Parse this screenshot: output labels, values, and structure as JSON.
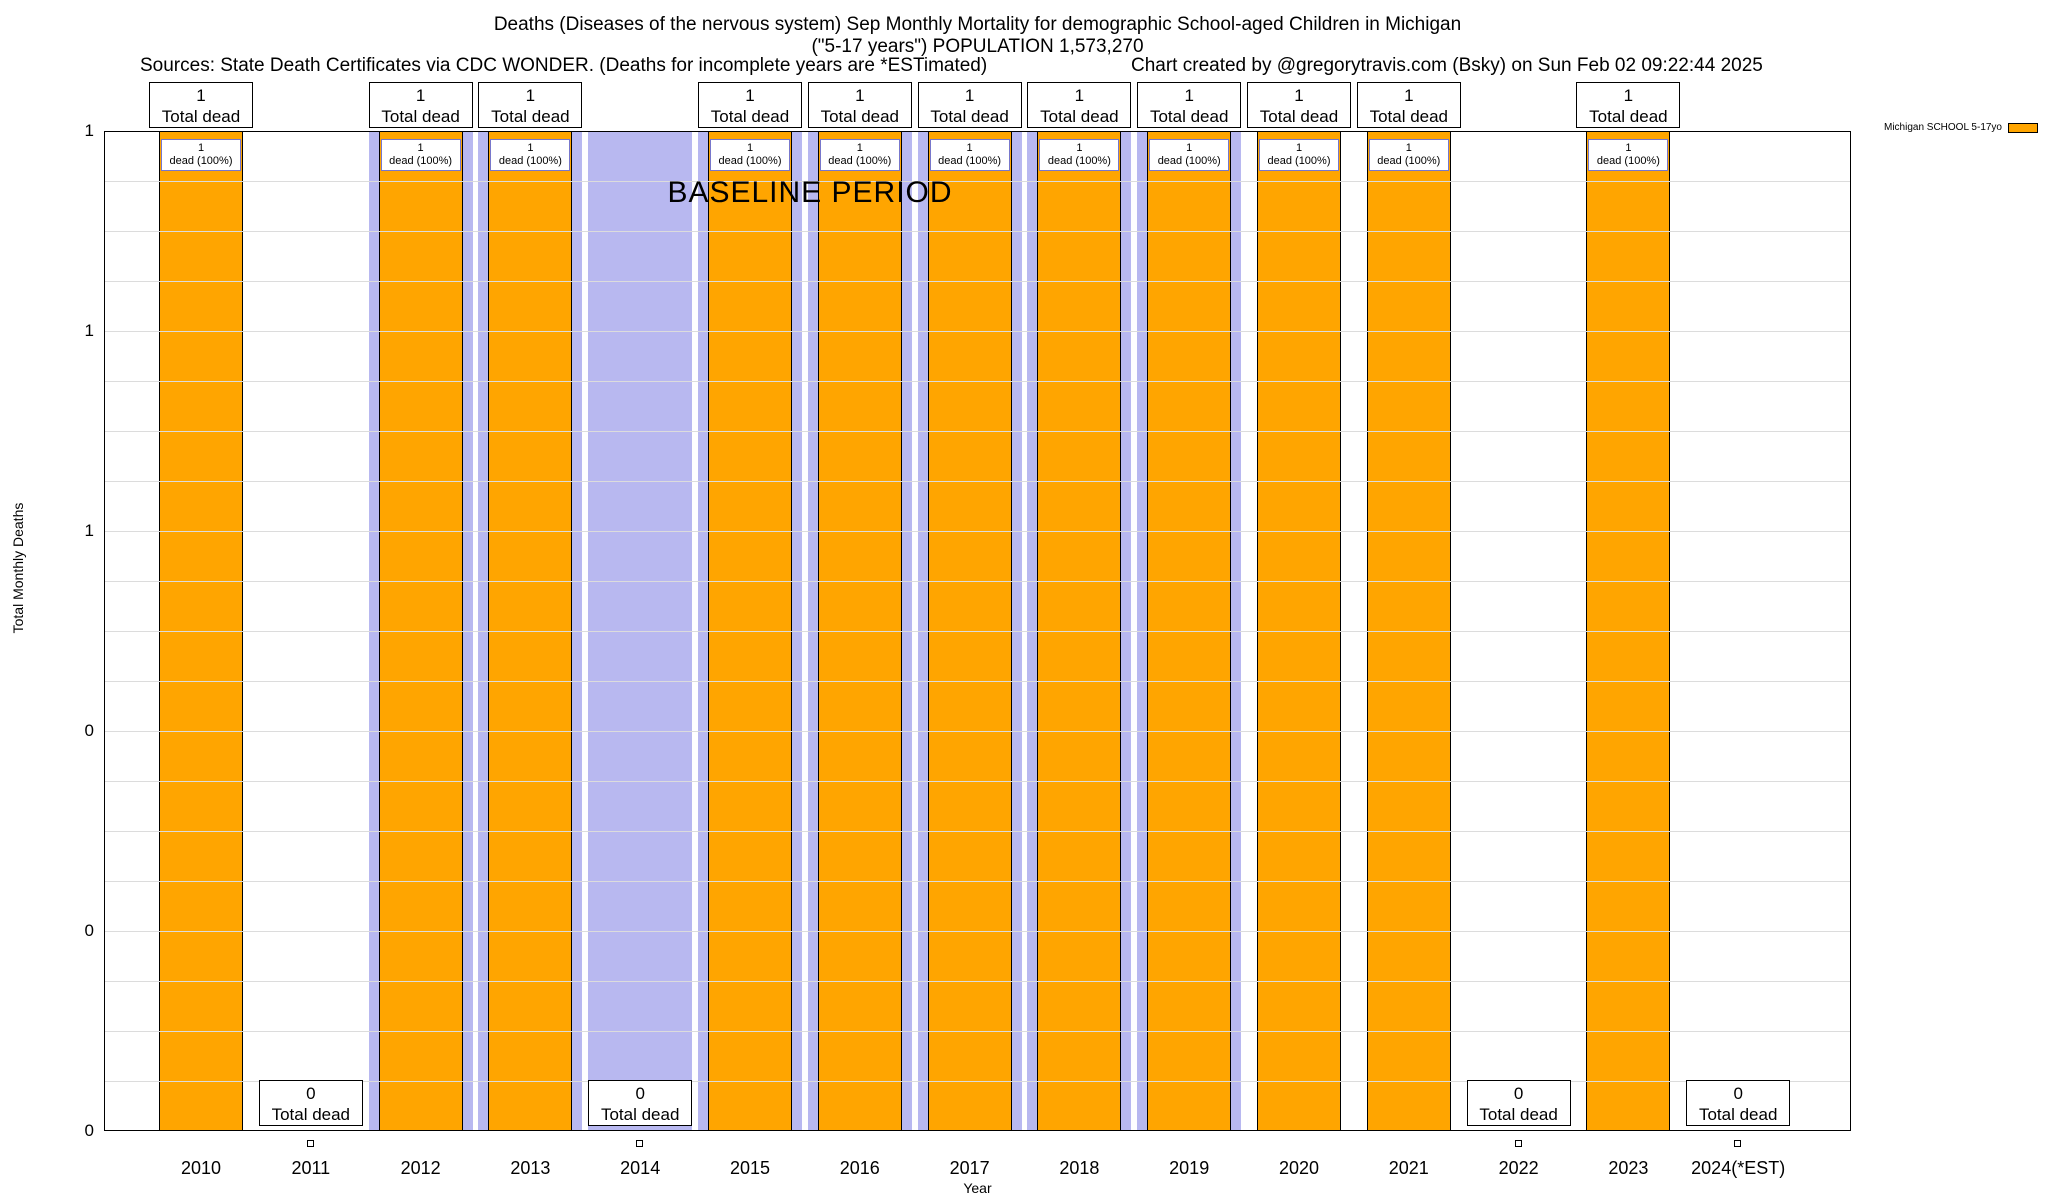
{
  "header": {
    "title_line1": "Deaths (Diseases of the nervous system) Sep Monthly Mortality for demographic School-aged Children in Michigan",
    "title_line2": "(\"5-17 years\") POPULATION 1,573,270",
    "sources": "Sources: State Death Certificates via CDC WONDER. (Deaths for incomplete years are *ESTimated)",
    "credit": "Chart created by @gregorytravis.com (Bsky) on Sun Feb 02 09:22:44 2025"
  },
  "legend": {
    "label": "Michigan SCHOOL 5-17yo",
    "color": "#ffa500"
  },
  "chart_data": {
    "type": "bar",
    "title": "Deaths (Diseases of the nervous system) Sep Monthly Mortality for demographic School-aged Children in Michigan (\"5-17 years\") POPULATION 1,573,270",
    "xlabel": "Year",
    "ylabel": "Total Monthly Deaths",
    "ylim": [
      0,
      1
    ],
    "y_tick_labels_top_to_bottom": [
      "1",
      "1",
      "1",
      "0",
      "0",
      "0"
    ],
    "categories": [
      "2010",
      "2011",
      "2012",
      "2013",
      "2014",
      "2015",
      "2016",
      "2017",
      "2018",
      "2019",
      "2020",
      "2021",
      "2022",
      "2023",
      "2024(*EST)"
    ],
    "series": [
      {
        "name": "Michigan SCHOOL 5-17yo",
        "color": "#ffa500",
        "values": [
          1,
          0,
          1,
          1,
          0,
          1,
          1,
          1,
          1,
          1,
          1,
          1,
          0,
          1,
          0
        ]
      }
    ],
    "annotations": {
      "total_dead_label": "Total dead",
      "inner_value_label": "1",
      "inner_pct_label": "dead (100%)"
    },
    "baseline_period": {
      "label": "BASELINE PERIOD",
      "from": "2012",
      "to": "2019",
      "color": "#b8b8f0"
    },
    "grid": "horizontal",
    "legend_position": "top-right"
  }
}
